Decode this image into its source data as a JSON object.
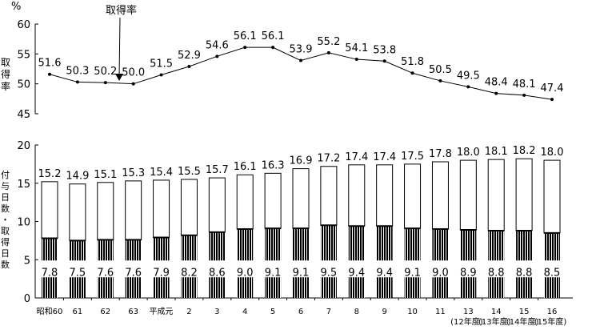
{
  "chart_data": [
    {
      "type": "line",
      "unit_label": "%",
      "ylabel": "取得率",
      "annotation": "取得率",
      "ylim": [
        45,
        60
      ],
      "yticks": [
        45,
        50,
        55,
        60
      ],
      "categories": [
        "昭和60",
        "61",
        "62",
        "63",
        "平成元",
        "2",
        "3",
        "4",
        "5",
        "6",
        "7",
        "8",
        "9",
        "10",
        "11",
        "13",
        "14",
        "15",
        "16"
      ],
      "values": [
        51.6,
        50.3,
        50.2,
        50.0,
        51.5,
        52.9,
        54.6,
        56.1,
        56.1,
        53.9,
        55.2,
        54.1,
        53.8,
        51.8,
        50.5,
        49.5,
        48.4,
        48.1,
        47.4
      ],
      "value_labels": [
        "51.6",
        "50.3",
        "50.2",
        "50.0",
        "51.5",
        "52.9",
        "54.6",
        "56.1",
        "56.1",
        "53.9",
        "55.2",
        "54.1",
        "53.8",
        "51.8",
        "50.5",
        "49.5",
        "48.4",
        "48.1",
        "47.4"
      ],
      "grid": false
    },
    {
      "type": "bar",
      "ylabel": "付与日数・取得日数",
      "ylim": [
        0,
        20
      ],
      "yticks": [
        0,
        5,
        10,
        15,
        20
      ],
      "categories": [
        "昭和60",
        "61",
        "62",
        "63",
        "平成元",
        "2",
        "3",
        "4",
        "5",
        "6",
        "7",
        "8",
        "9",
        "10",
        "11",
        "13",
        "14",
        "15",
        "16"
      ],
      "sub_categories": [
        "",
        "",
        "",
        "",
        "",
        "",
        "",
        "",
        "",
        "",
        "",
        "",
        "",
        "",
        "",
        "(12年度)",
        "(13年度)",
        "(14年度)",
        "(15年度)"
      ],
      "series": [
        {
          "values": [
            15.2,
            14.9,
            15.1,
            15.3,
            15.4,
            15.5,
            15.7,
            16.1,
            16.3,
            16.9,
            17.2,
            17.4,
            17.4,
            17.5,
            17.8,
            18.0,
            18.1,
            18.2,
            18.0
          ],
          "value_labels": [
            "15.2",
            "14.9",
            "15.1",
            "15.3",
            "15.4",
            "15.5",
            "15.7",
            "16.1",
            "16.3",
            "16.9",
            "17.2",
            "17.4",
            "17.4",
            "17.5",
            "17.8",
            "18.0",
            "18.1",
            "18.2",
            "18.0"
          ]
        },
        {
          "values": [
            7.8,
            7.5,
            7.6,
            7.6,
            7.9,
            8.2,
            8.6,
            9.0,
            9.1,
            9.1,
            9.5,
            9.4,
            9.4,
            9.1,
            9.0,
            8.9,
            8.8,
            8.8,
            8.5
          ],
          "value_labels": [
            "7.8",
            "7.5",
            "7.6",
            "7.6",
            "7.9",
            "8.2",
            "8.6",
            "9.0",
            "9.1",
            "9.1",
            "9.5",
            "9.4",
            "9.4",
            "9.1",
            "9.0",
            "8.9",
            "8.8",
            "8.8",
            "8.5"
          ]
        }
      ],
      "grid": false
    }
  ]
}
